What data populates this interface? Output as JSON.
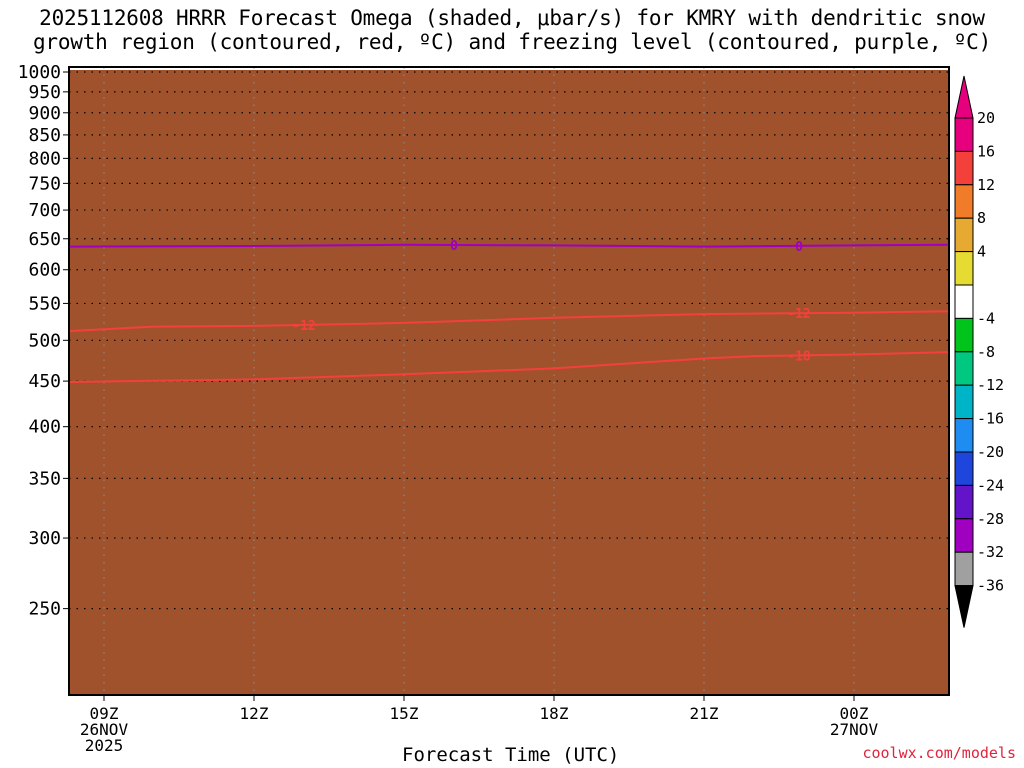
{
  "title": {
    "line1": "2025112608 HRRR Forecast Omega (shaded, μbar/s) for KMRY with dendritic snow",
    "line2": "growth region (contoured, red, ºC) and freezing level (contoured, purple, ºC)"
  },
  "credit": "coolwx.com/models",
  "chart_data": {
    "type": "heatmap",
    "xlabel": "Forecast Time (UTC)",
    "ylabel": "",
    "x_ticks": [
      {
        "hour": 9,
        "label": "09Z",
        "sub1": "26NOV",
        "sub2": "2025"
      },
      {
        "hour": 12,
        "label": "12Z",
        "sub1": "",
        "sub2": ""
      },
      {
        "hour": 15,
        "label": "15Z",
        "sub1": "",
        "sub2": ""
      },
      {
        "hour": 18,
        "label": "18Z",
        "sub1": "",
        "sub2": ""
      },
      {
        "hour": 21,
        "label": "21Z",
        "sub1": "",
        "sub2": ""
      },
      {
        "hour": 24,
        "label": "00Z",
        "sub1": "27NOV",
        "sub2": ""
      }
    ],
    "x_range_hours": [
      8.3,
      25.9
    ],
    "y_ticks": [
      250,
      300,
      350,
      400,
      450,
      500,
      550,
      600,
      650,
      700,
      750,
      800,
      850,
      900,
      950,
      1000
    ],
    "y_range_hPa": [
      1013,
      200
    ],
    "y_scale": "log",
    "grid": true,
    "colorbar": {
      "tick_labels": [
        "20",
        "16",
        "12",
        "8",
        "4",
        "-4",
        "-8",
        "-12",
        "-16",
        "-20",
        "-24",
        "-28",
        "-32",
        "-36"
      ],
      "bins": [
        {
          "range": [
            20,
            24
          ],
          "color": "#e6007e"
        },
        {
          "range": [
            16,
            20
          ],
          "color": "#f4403a"
        },
        {
          "range": [
            12,
            16
          ],
          "color": "#f07b28"
        },
        {
          "range": [
            8,
            12
          ],
          "color": "#e6aa32"
        },
        {
          "range": [
            4,
            8
          ],
          "color": "#e6db32"
        },
        {
          "range": [
            -4,
            4
          ],
          "color": "#ffffff"
        },
        {
          "range": [
            -8,
            -4
          ],
          "color": "#00c41c"
        },
        {
          "range": [
            -12,
            -8
          ],
          "color": "#00c880"
        },
        {
          "range": [
            -16,
            -12
          ],
          "color": "#00b4c8"
        },
        {
          "range": [
            -20,
            -16
          ],
          "color": "#1e8cf0"
        },
        {
          "range": [
            -24,
            -20
          ],
          "color": "#1e46dc"
        },
        {
          "range": [
            -28,
            -24
          ],
          "color": "#6414c8"
        },
        {
          "range": [
            -32,
            -28
          ],
          "color": "#a000c0"
        },
        {
          "range": [
            -36,
            -32
          ],
          "color": "#a0a0a0"
        }
      ],
      "extend_max_color": "#e6007e",
      "extend_min_color": "#000000"
    },
    "terrain_color": "#a0522d",
    "contours": [
      {
        "level": "-18",
        "color": "#f4403a",
        "points": [
          [
            8.3,
            449
          ],
          [
            12,
            452
          ],
          [
            15,
            458
          ],
          [
            18,
            465
          ],
          [
            21,
            477
          ],
          [
            22,
            480
          ],
          [
            24,
            482
          ],
          [
            25.9,
            485
          ]
        ],
        "label_hour": 22.9
      },
      {
        "level": "-12",
        "color": "#f4403a",
        "points": [
          [
            8.3,
            512
          ],
          [
            10,
            518
          ],
          [
            12,
            519
          ],
          [
            15,
            523
          ],
          [
            18,
            530
          ],
          [
            21,
            535
          ],
          [
            24,
            537
          ],
          [
            25.9,
            539
          ]
        ],
        "label_hour": 13.0
      },
      {
        "level": "-12",
        "color": "#f4403a",
        "points": [],
        "label_hour": 22.9
      },
      {
        "level": "0",
        "color": "#a000c0",
        "points": [
          [
            8.3,
            637
          ],
          [
            12,
            638
          ],
          [
            15,
            640
          ],
          [
            18,
            639
          ],
          [
            21,
            637
          ],
          [
            24,
            639
          ],
          [
            25.9,
            640
          ]
        ],
        "label_hour": 16.0
      },
      {
        "level": "0",
        "color": "#a000c0",
        "points": [],
        "label_hour": 22.9
      }
    ]
  }
}
